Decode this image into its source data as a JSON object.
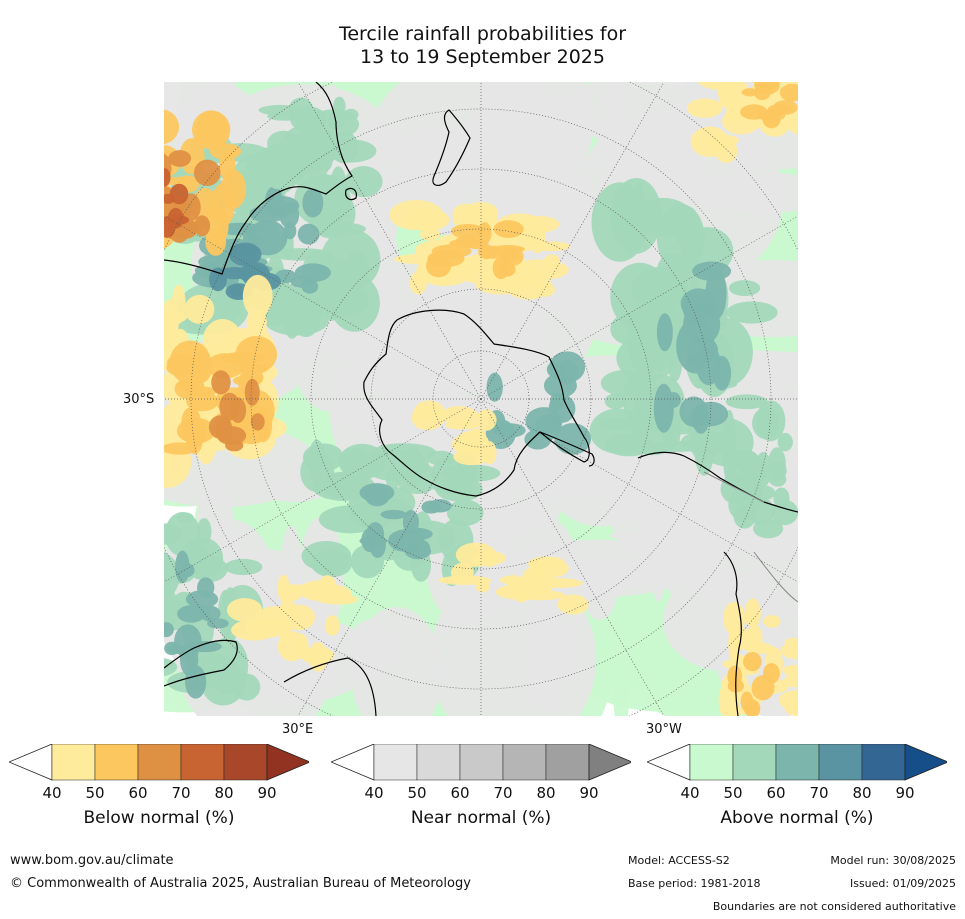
{
  "title": {
    "line1": "Tercile rainfall probabilities for",
    "line2": "13 to 19 September 2025"
  },
  "map": {
    "projection": "south-polar-stereographic",
    "axis_labels": {
      "left": "30°S",
      "bottom_left": "30°E",
      "bottom_right": "30°W"
    },
    "colors": {
      "land_outline": "#000000",
      "border": "#888888",
      "grid": "#555555"
    }
  },
  "colorbars": [
    {
      "label": "Below normal (%)",
      "ticks": [
        "40",
        "50",
        "60",
        "70",
        "80",
        "90"
      ],
      "colors": [
        "#ffffff",
        "#ffeb9c",
        "#fdc760",
        "#df9143",
        "#c86332",
        "#a9472b",
        "#923322"
      ]
    },
    {
      "label": "Near normal (%)",
      "ticks": [
        "40",
        "50",
        "60",
        "70",
        "80",
        "90"
      ],
      "colors": [
        "#ffffff",
        "#e6e6e6",
        "#d9d9d9",
        "#c9c9c9",
        "#b5b5b5",
        "#a0a0a0",
        "#808080"
      ]
    },
    {
      "label": "Above normal (%)",
      "ticks": [
        "40",
        "50",
        "60",
        "70",
        "80",
        "90"
      ],
      "colors": [
        "#ffffff",
        "#c9f9cf",
        "#a3d8bb",
        "#7cb5ac",
        "#5a93a1",
        "#346694",
        "#154e88"
      ]
    }
  ],
  "footer": {
    "website": "www.bom.gov.au/climate",
    "copyright": "© Commonwealth of Australia 2025, Australian Bureau of Meteorology",
    "model": "Model: ACCESS-S2",
    "base_period": "Base period: 1981-2018",
    "model_run": "Model run: 30/08/2025",
    "issued": "Issued: 01/09/2025",
    "disclaimer": "Boundaries are not considered authoritative"
  }
}
